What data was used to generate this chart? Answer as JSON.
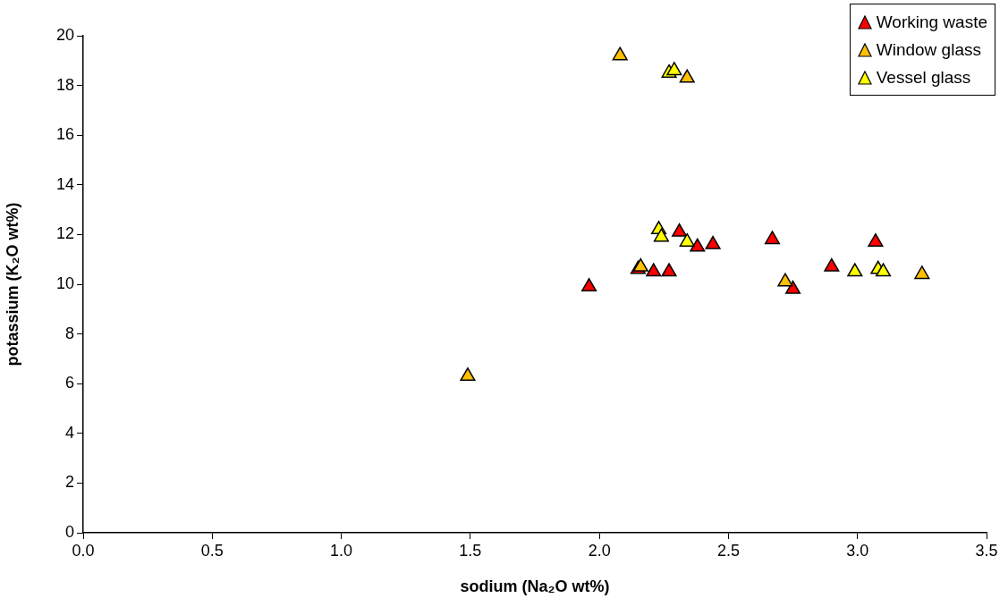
{
  "chart_data": {
    "type": "scatter",
    "xlabel": "sodium (Na₂O wt%)",
    "ylabel": "potassium (K₂O wt%)",
    "xlim": [
      0,
      3.5
    ],
    "xticks": [
      {
        "value": 0,
        "label": "0.0"
      },
      {
        "value": 0.5,
        "label": "0.5"
      },
      {
        "value": 1,
        "label": "1.0"
      },
      {
        "value": 1.5,
        "label": "1.5"
      },
      {
        "value": 2,
        "label": "2.0"
      },
      {
        "value": 2.5,
        "label": "2.5"
      },
      {
        "value": 3,
        "label": "3.0"
      },
      {
        "value": 3.5,
        "label": "3.5"
      }
    ],
    "ylim": [
      0,
      20
    ],
    "yticks": [
      0,
      2,
      4,
      6,
      8,
      10,
      12,
      14,
      16,
      18,
      20
    ],
    "grid": false,
    "legend": "top right",
    "marker": "triangle",
    "series": [
      {
        "name": "Working waste",
        "color": "#ff0000",
        "x": [
          1.96,
          2.15,
          2.21,
          2.27,
          2.31,
          2.38,
          2.44,
          2.67,
          2.75,
          2.9,
          3.07
        ],
        "values": [
          9.9,
          10.6,
          10.5,
          10.5,
          12.1,
          11.5,
          11.6,
          11.8,
          9.8,
          10.7,
          11.7
        ]
      },
      {
        "name": "Window glass",
        "color": "#ffc000",
        "x": [
          2.08,
          2.34,
          1.49,
          2.16,
          2.72,
          3.25
        ],
        "values": [
          19.2,
          18.3,
          6.3,
          10.7,
          10.1,
          10.4
        ]
      },
      {
        "name": "Vessel glass",
        "color": "#ffff00",
        "x": [
          2.27,
          2.29,
          2.23,
          2.24,
          2.34,
          2.99,
          3.08,
          3.1
        ],
        "values": [
          18.5,
          18.6,
          12.2,
          11.9,
          11.7,
          10.5,
          10.6,
          10.5
        ]
      }
    ]
  }
}
